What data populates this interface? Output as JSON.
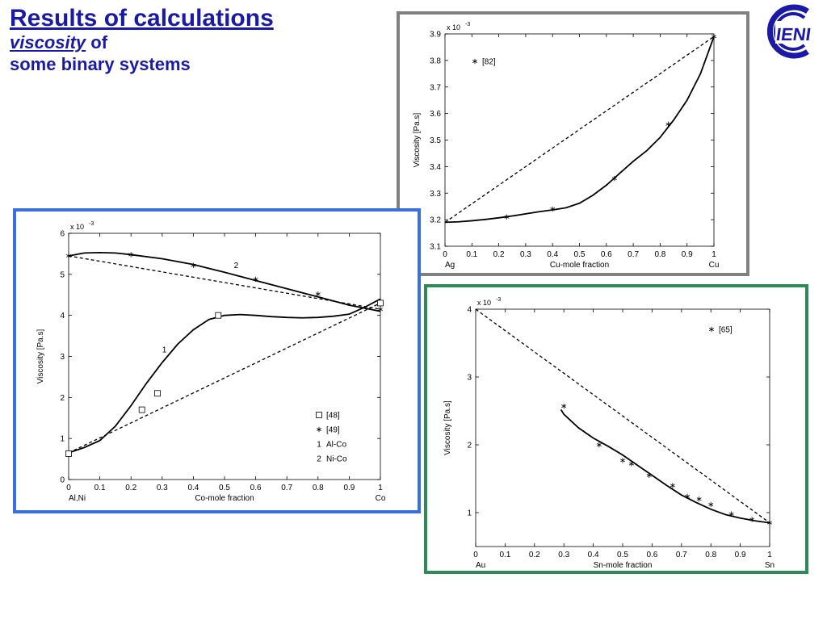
{
  "header": {
    "title": "Results of calculations",
    "subtitle_underlined": "viscosity",
    "subtitle_rest": " of",
    "subtitle_line2": "some binary systems"
  },
  "logo": {
    "text": "IENI",
    "color": "#1a1aa6"
  },
  "colors": {
    "title": "#1a1aa6",
    "frame_cu": "#808080",
    "frame_co": "#3b6fe0",
    "frame_sn": "#2e8b57"
  },
  "chart_data": [
    {
      "id": "ag-cu",
      "type": "line",
      "exponent": "x 10",
      "exponent_power": "-3",
      "xlabel": "Cu-mole fraction",
      "ylabel": "Viscosity [Pa.s]",
      "x_end_left": "Ag",
      "x_end_right": "Cu",
      "xlim": [
        0,
        1
      ],
      "ylim": [
        3.1,
        3.9
      ],
      "xticks": [
        0,
        0.1,
        0.2,
        0.3,
        0.4,
        0.5,
        0.6,
        0.7,
        0.8,
        0.9,
        1
      ],
      "yticks": [
        3.1,
        3.2,
        3.3,
        3.4,
        3.5,
        3.6,
        3.7,
        3.8,
        3.9
      ],
      "legend": [
        {
          "marker": "asterisk",
          "label": "[82]"
        }
      ],
      "ideal_line": {
        "x": [
          0,
          1
        ],
        "y": [
          3.19,
          3.89
        ]
      },
      "model_curve": {
        "x": [
          0,
          0.05,
          0.1,
          0.15,
          0.2,
          0.25,
          0.3,
          0.35,
          0.4,
          0.45,
          0.5,
          0.55,
          0.6,
          0.65,
          0.7,
          0.75,
          0.8,
          0.85,
          0.9,
          0.95,
          1.0
        ],
        "y": [
          3.19,
          3.192,
          3.196,
          3.201,
          3.207,
          3.214,
          3.222,
          3.23,
          3.237,
          3.245,
          3.262,
          3.292,
          3.33,
          3.375,
          3.42,
          3.46,
          3.51,
          3.575,
          3.65,
          3.75,
          3.89
        ]
      },
      "points": {
        "x": [
          0.23,
          0.4,
          0.63,
          0.83,
          1.0
        ],
        "y": [
          3.21,
          3.24,
          3.355,
          3.56,
          3.89
        ]
      }
    },
    {
      "id": "co-systems",
      "type": "line",
      "exponent": "x 10",
      "exponent_power": "-3",
      "xlabel": "Co-mole fraction",
      "ylabel": "Viscosity [Pa.s]",
      "x_end_left": "Al,Ni",
      "x_end_right": "Co",
      "xlim": [
        0,
        1
      ],
      "ylim": [
        0,
        6
      ],
      "xticks": [
        0,
        0.1,
        0.2,
        0.3,
        0.4,
        0.5,
        0.6,
        0.7,
        0.8,
        0.9,
        1
      ],
      "yticks": [
        0,
        1,
        2,
        3,
        4,
        5,
        6
      ],
      "legend": [
        {
          "marker": "square",
          "label": "[48]"
        },
        {
          "marker": "asterisk",
          "label": "[49]"
        },
        {
          "marker": "1",
          "label": "Al-Co"
        },
        {
          "marker": "2",
          "label": "Ni-Co"
        }
      ],
      "curve_labels": [
        {
          "text": "1",
          "x": 0.3,
          "y": 3.1
        },
        {
          "text": "2",
          "x": 0.53,
          "y": 5.15
        }
      ],
      "ideal_lines": [
        {
          "x": [
            0,
            1
          ],
          "y": [
            0.65,
            4.3
          ]
        },
        {
          "x": [
            0,
            1
          ],
          "y": [
            5.45,
            4.15
          ]
        }
      ],
      "series": [
        {
          "x": [
            0,
            0.05,
            0.1,
            0.15,
            0.2,
            0.25,
            0.3,
            0.35,
            0.4,
            0.45,
            0.5,
            0.55,
            0.6,
            0.65,
            0.7,
            0.75,
            0.8,
            0.85,
            0.9,
            0.95,
            1.0
          ],
          "y": [
            0.65,
            0.78,
            0.95,
            1.3,
            1.8,
            2.35,
            2.85,
            3.3,
            3.65,
            3.9,
            4.0,
            4.02,
            4.0,
            3.97,
            3.95,
            3.94,
            3.95,
            3.98,
            4.03,
            4.2,
            4.4
          ]
        },
        {
          "x": [
            0,
            0.05,
            0.1,
            0.15,
            0.2,
            0.3,
            0.4,
            0.5,
            0.6,
            0.7,
            0.8,
            0.9,
            1.0
          ],
          "y": [
            5.45,
            5.52,
            5.53,
            5.52,
            5.48,
            5.38,
            5.24,
            5.05,
            4.85,
            4.65,
            4.45,
            4.25,
            4.1
          ]
        }
      ],
      "points_square": {
        "x": [
          0,
          0.235,
          0.285,
          0.48,
          1.0
        ],
        "y": [
          0.63,
          1.7,
          2.1,
          4.0,
          4.3
        ]
      },
      "points_asterisk": {
        "x": [
          0,
          0.2,
          0.4,
          0.6,
          0.8,
          1.0
        ],
        "y": [
          5.45,
          5.48,
          5.22,
          4.88,
          4.52,
          4.15
        ]
      }
    },
    {
      "id": "au-sn",
      "type": "line",
      "exponent": "x 10",
      "exponent_power": "-3",
      "xlabel": "Sn-mole fraction",
      "ylabel": "Viscosity [Pa.s]",
      "x_end_left": "Au",
      "x_end_right": "Sn",
      "xlim": [
        0,
        1
      ],
      "ylim": [
        0.5,
        4
      ],
      "xticks": [
        0,
        0.1,
        0.2,
        0.3,
        0.4,
        0.5,
        0.6,
        0.7,
        0.8,
        0.9,
        1
      ],
      "yticks": [
        1,
        2,
        3,
        4
      ],
      "legend": [
        {
          "marker": "asterisk",
          "label": "[65]"
        }
      ],
      "ideal_line": {
        "x": [
          0,
          1
        ],
        "y": [
          4.0,
          0.85
        ]
      },
      "model_curve": {
        "x": [
          0.29,
          0.3,
          0.35,
          0.4,
          0.45,
          0.5,
          0.55,
          0.6,
          0.65,
          0.7,
          0.75,
          0.8,
          0.85,
          0.9,
          0.95,
          1.0
        ],
        "y": [
          2.52,
          2.45,
          2.25,
          2.1,
          1.98,
          1.85,
          1.7,
          1.55,
          1.4,
          1.26,
          1.15,
          1.05,
          0.97,
          0.92,
          0.88,
          0.85
        ]
      },
      "points": {
        "x": [
          0.3,
          0.42,
          0.5,
          0.53,
          0.59,
          0.67,
          0.72,
          0.76,
          0.8,
          0.87,
          0.94,
          1.0
        ],
        "y": [
          2.57,
          2.0,
          1.77,
          1.72,
          1.55,
          1.4,
          1.24,
          1.2,
          1.12,
          0.98,
          0.9,
          0.85
        ]
      }
    }
  ]
}
